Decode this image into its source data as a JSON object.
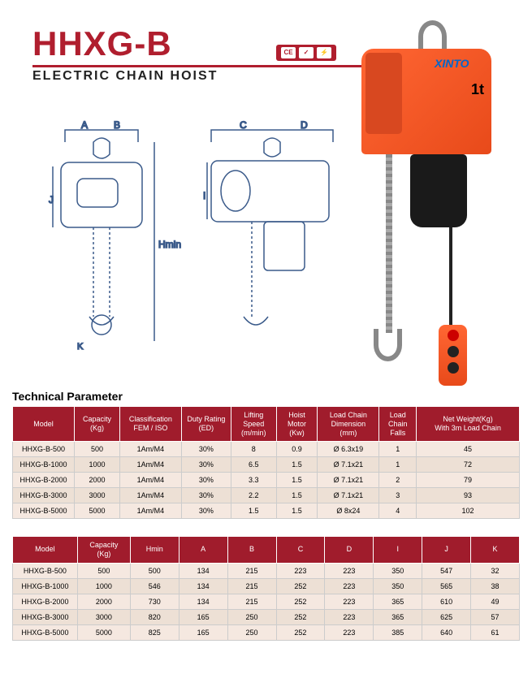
{
  "header": {
    "title": "HHXG-B",
    "subtitle": "ELECTRIC CHAIN HOIST",
    "brand": "XINTO",
    "capacity": "1t",
    "badge1": "CE",
    "badge2": "✓",
    "badge3": "⚡"
  },
  "colors": {
    "red": "#a01c2c",
    "title_red": "#b01e2e",
    "orange": "#ff6633",
    "diagram_blue": "#3a5a8a",
    "row_odd": "#f5e8e0",
    "row_even": "#ede0d5"
  },
  "diagram_labels": {
    "A": "A",
    "B": "B",
    "C": "C",
    "D": "D",
    "J": "J",
    "I": "I",
    "K": "K",
    "Hmin": "Hmin"
  },
  "section_title": "Technical Parameter",
  "table1": {
    "headers": [
      "Model",
      "Capacity\n(Kg)",
      "Classification\nFEM / ISO",
      "Duty Rating\n(ED)",
      "Lifting\nSpeed\n(m/min)",
      "Hoist\nMotor\n(Kw)",
      "Load Chain\nDimension\n(mm)",
      "Load\nChain\nFalls",
      "Net Weight(Kg)\nWith 3m Load Chain"
    ],
    "rows": [
      [
        "HHXG-B-500",
        "500",
        "1Am/M4",
        "30%",
        "8",
        "0.9",
        "Ø 6.3x19",
        "1",
        "45"
      ],
      [
        "HHXG-B-1000",
        "1000",
        "1Am/M4",
        "30%",
        "6.5",
        "1.5",
        "Ø 7.1x21",
        "1",
        "72"
      ],
      [
        "HHXG-B-2000",
        "2000",
        "1Am/M4",
        "30%",
        "3.3",
        "1.5",
        "Ø 7.1x21",
        "2",
        "79"
      ],
      [
        "HHXG-B-3000",
        "3000",
        "1Am/M4",
        "30%",
        "2.2",
        "1.5",
        "Ø 7.1x21",
        "3",
        "93"
      ],
      [
        "HHXG-B-5000",
        "5000",
        "1Am/M4",
        "30%",
        "1.5",
        "1.5",
        "Ø 8x24",
        "4",
        "102"
      ]
    ],
    "widths": [
      75,
      55,
      75,
      60,
      55,
      50,
      75,
      45,
      125
    ]
  },
  "table2": {
    "headers": [
      "Model",
      "Capacity\n(Kg)",
      "Hmin",
      "A",
      "B",
      "C",
      "D",
      "I",
      "J",
      "K"
    ],
    "rows": [
      [
        "HHXG-B-500",
        "500",
        "500",
        "134",
        "215",
        "223",
        "223",
        "350",
        "547",
        "32"
      ],
      [
        "HHXG-B-1000",
        "1000",
        "546",
        "134",
        "215",
        "252",
        "223",
        "350",
        "565",
        "38"
      ],
      [
        "HHXG-B-2000",
        "2000",
        "730",
        "134",
        "215",
        "252",
        "223",
        "365",
        "610",
        "49"
      ],
      [
        "HHXG-B-3000",
        "3000",
        "820",
        "165",
        "250",
        "252",
        "223",
        "365",
        "625",
        "57"
      ],
      [
        "HHXG-B-5000",
        "5000",
        "825",
        "165",
        "250",
        "252",
        "223",
        "385",
        "640",
        "61"
      ]
    ],
    "widths": [
      80,
      65,
      60,
      60,
      60,
      60,
      60,
      60,
      60,
      60
    ]
  }
}
